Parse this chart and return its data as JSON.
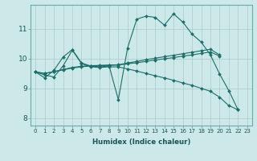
{
  "xlabel": "Humidex (Indice chaleur)",
  "bg_color": "#cce8e8",
  "line_color": "#1a7068",
  "grid_color": "#aacccc",
  "xlim": [
    -0.5,
    23.5
  ],
  "ylim": [
    7.75,
    11.8
  ],
  "xticks": [
    0,
    1,
    2,
    3,
    4,
    5,
    6,
    7,
    8,
    9,
    10,
    11,
    12,
    13,
    14,
    15,
    16,
    17,
    18,
    19,
    20,
    21,
    22,
    23
  ],
  "yticks": [
    8,
    9,
    10,
    11
  ],
  "curves": [
    {
      "x": [
        0,
        1,
        2,
        3,
        4,
        5,
        6,
        7,
        8,
        9,
        10,
        11,
        12,
        13,
        14,
        15,
        16,
        17,
        18,
        19,
        20,
        21,
        22
      ],
      "y": [
        9.55,
        9.35,
        9.6,
        10.05,
        10.3,
        9.85,
        9.75,
        9.72,
        9.75,
        8.62,
        10.35,
        11.32,
        11.42,
        11.38,
        11.12,
        11.5,
        11.22,
        10.82,
        10.55,
        10.12,
        9.48,
        8.92,
        8.28
      ]
    },
    {
      "x": [
        0,
        1,
        2,
        3,
        4,
        5,
        6,
        7,
        8,
        9,
        10,
        11,
        12,
        13,
        14,
        15,
        16,
        17,
        18,
        19,
        20
      ],
      "y": [
        9.55,
        9.5,
        9.55,
        9.62,
        9.68,
        9.72,
        9.75,
        9.76,
        9.77,
        9.78,
        9.82,
        9.86,
        9.9,
        9.95,
        9.99,
        10.03,
        10.08,
        10.12,
        10.17,
        10.22,
        10.08
      ]
    },
    {
      "x": [
        0,
        1,
        2,
        3,
        4,
        5,
        6,
        7,
        8,
        9,
        10,
        11,
        12,
        13,
        14,
        15,
        16,
        17,
        18,
        19,
        20
      ],
      "y": [
        9.55,
        9.5,
        9.56,
        9.63,
        9.7,
        9.74,
        9.76,
        9.77,
        9.78,
        9.79,
        9.85,
        9.9,
        9.96,
        10.01,
        10.06,
        10.11,
        10.16,
        10.21,
        10.26,
        10.31,
        10.12
      ]
    },
    {
      "x": [
        0,
        1,
        2,
        3,
        4,
        5,
        6,
        7,
        8,
        9,
        10,
        11,
        12,
        13,
        14,
        15,
        16,
        17,
        18,
        19,
        20,
        21,
        22
      ],
      "y": [
        9.55,
        9.45,
        9.38,
        9.75,
        10.28,
        9.83,
        9.72,
        9.7,
        9.72,
        9.72,
        9.65,
        9.58,
        9.5,
        9.42,
        9.35,
        9.27,
        9.18,
        9.1,
        9.0,
        8.9,
        8.7,
        8.42,
        8.28
      ]
    }
  ]
}
